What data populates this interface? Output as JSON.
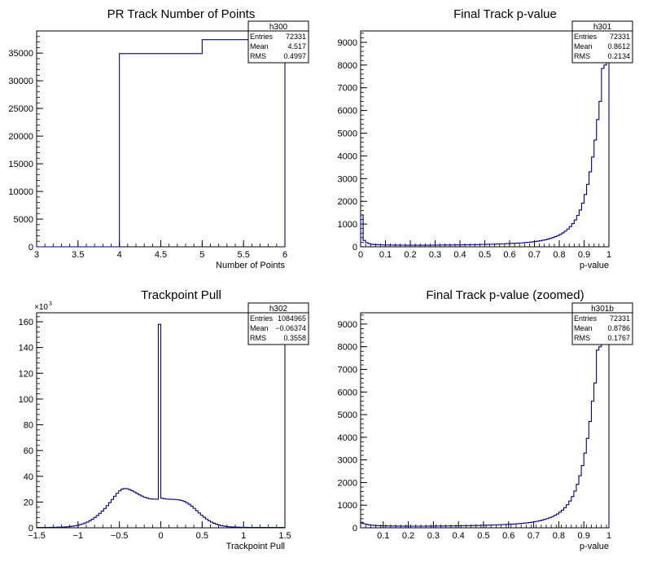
{
  "chart_data": [
    {
      "type": "histogram",
      "title": "PR Track Number of Points",
      "xlabel": "Number of Points",
      "ylabel": "",
      "xlim": [
        3,
        6
      ],
      "ylim": [
        0,
        39000
      ],
      "x_ticks": [
        "3",
        "3.5",
        "4",
        "4.5",
        "5",
        "5.5",
        "6"
      ],
      "y_ticks": [
        "0",
        "5000",
        "10000",
        "15000",
        "20000",
        "25000",
        "30000",
        "35000"
      ],
      "y_multiplier": "",
      "line_color": "#00008b",
      "bin_edges": [
        3,
        4,
        5,
        6
      ],
      "counts": [
        0,
        34900,
        37431
      ],
      "stats": {
        "name": "h300",
        "rows": [
          {
            "label": "Entries",
            "value": "72331"
          },
          {
            "label": "Mean",
            "value": "4.517"
          },
          {
            "label": "RMS",
            "value": "0.4997"
          }
        ]
      }
    },
    {
      "type": "histogram",
      "title": "Final Track p-value",
      "xlabel": "p-value",
      "ylabel": "",
      "xlim": [
        0,
        1
      ],
      "ylim": [
        0,
        9500
      ],
      "x_ticks": [
        "0",
        "0.1",
        "0.2",
        "0.3",
        "0.4",
        "0.5",
        "0.6",
        "0.7",
        "0.8",
        "0.9",
        "1"
      ],
      "y_ticks": [
        "0",
        "1000",
        "2000",
        "3000",
        "4000",
        "5000",
        "6000",
        "7000",
        "8000",
        "9000"
      ],
      "y_multiplier": "",
      "line_color": "#00008b",
      "bin_width": 0.01,
      "counts": [
        1400,
        280,
        180,
        140,
        110,
        100,
        95,
        90,
        85,
        80,
        80,
        78,
        76,
        75,
        74,
        73,
        72,
        72,
        71,
        70,
        70,
        70,
        70,
        70,
        70,
        70,
        70,
        71,
        72,
        73,
        74,
        75,
        76,
        77,
        78,
        79,
        80,
        81,
        82,
        83,
        84,
        86,
        88,
        90,
        92,
        94,
        96,
        98,
        100,
        103,
        106,
        109,
        112,
        115,
        118,
        122,
        126,
        130,
        135,
        140,
        145,
        150,
        156,
        163,
        170,
        178,
        187,
        197,
        208,
        220,
        234,
        250,
        268,
        288,
        312,
        340,
        370,
        405,
        445,
        490,
        545,
        610,
        690,
        780,
        890,
        1020,
        1180,
        1380,
        1620,
        1920,
        2300,
        2750,
        3300,
        3950,
        4700,
        5600,
        6400,
        7850,
        8000,
        8300
      ],
      "stats": {
        "name": "h301",
        "rows": [
          {
            "label": "Entries",
            "value": "72331"
          },
          {
            "label": "Mean",
            "value": "0.8612"
          },
          {
            "label": "RMS",
            "value": "0.2134"
          }
        ]
      }
    },
    {
      "type": "histogram",
      "title": "Trackpoint Pull",
      "xlabel": "Trackpoint Pull",
      "ylabel": "",
      "xlim": [
        -1.5,
        1.5
      ],
      "ylim": [
        0,
        167
      ],
      "x_ticks": [
        "−1.5",
        "−1",
        "−0.5",
        "0",
        "0.5",
        "1",
        "1.5"
      ],
      "y_ticks": [
        "0",
        "20",
        "40",
        "60",
        "80",
        "100",
        "120",
        "140",
        "160"
      ],
      "y_multiplier": "×10",
      "y_multiplier_exponent": "3",
      "line_color": "#00008b",
      "bin_width": 0.03,
      "counts": [
        0.3,
        0.3,
        0.3,
        0.3,
        0.3,
        0.4,
        0.4,
        0.4,
        0.5,
        0.5,
        0.6,
        0.7,
        0.8,
        1.0,
        1.2,
        1.5,
        1.9,
        2.4,
        3.0,
        3.7,
        4.5,
        5.5,
        6.7,
        8.0,
        9.5,
        11.2,
        13.0,
        15.0,
        17.2,
        19.6,
        22.0,
        24.5,
        26.8,
        28.7,
        30.0,
        30.5,
        30.3,
        29.7,
        28.8,
        27.8,
        26.7,
        25.6,
        24.6,
        23.8,
        23.2,
        22.6,
        22.4,
        22.3,
        22.2,
        158.0,
        23.0,
        22.6,
        22.3,
        22.2,
        22.1,
        22.0,
        21.9,
        21.6,
        21.2,
        20.5,
        19.5,
        18.3,
        16.8,
        15.1,
        13.3,
        11.5,
        9.8,
        8.2,
        6.8,
        5.5,
        4.4,
        3.5,
        2.8,
        2.2,
        1.7,
        1.3,
        1.0,
        0.8,
        0.7,
        0.6,
        0.5,
        0.5,
        0.4,
        0.4,
        0.4,
        0.3,
        0.3,
        0.3,
        0.3,
        0.3,
        0.3,
        0.3,
        0.3,
        0.3,
        0.3,
        0.3,
        0.3,
        0.3,
        0.3,
        0.3
      ],
      "stats": {
        "name": "h302",
        "rows": [
          {
            "label": "Entries",
            "value": "1084965"
          },
          {
            "label": "Mean",
            "value": "−0.06374"
          },
          {
            "label": "RMS",
            "value": "0.3558"
          }
        ]
      }
    },
    {
      "type": "histogram",
      "title": "Final Track p-value (zoomed)",
      "xlabel": "p-value",
      "ylabel": "",
      "xlim": [
        0.01,
        1
      ],
      "ylim": [
        0,
        9500
      ],
      "x_ticks": [
        "0.1",
        "0.2",
        "0.3",
        "0.4",
        "0.5",
        "0.6",
        "0.7",
        "0.8",
        "0.9",
        "1"
      ],
      "y_ticks": [
        "0",
        "1000",
        "2000",
        "3000",
        "4000",
        "5000",
        "6000",
        "7000",
        "8000",
        "9000"
      ],
      "y_multiplier": "",
      "line_color": "#00008b",
      "bin_width": 0.01,
      "counts": [
        240,
        180,
        150,
        130,
        115,
        105,
        98,
        92,
        88,
        85,
        82,
        80,
        78,
        77,
        76,
        75,
        74,
        73,
        73,
        72,
        72,
        72,
        72,
        72,
        72,
        72,
        73,
        74,
        75,
        76,
        77,
        78,
        79,
        80,
        81,
        82,
        83,
        84,
        86,
        88,
        90,
        92,
        94,
        96,
        98,
        100,
        103,
        106,
        109,
        112,
        115,
        118,
        122,
        126,
        130,
        135,
        140,
        145,
        150,
        156,
        163,
        170,
        178,
        187,
        197,
        208,
        220,
        234,
        250,
        268,
        288,
        312,
        340,
        370,
        405,
        445,
        490,
        545,
        610,
        690,
        780,
        890,
        1020,
        1180,
        1380,
        1620,
        1920,
        2300,
        2750,
        3300,
        3950,
        4700,
        5600,
        6400,
        7850,
        8000,
        8300,
        8400,
        8500
      ],
      "stats": {
        "name": "h301b",
        "rows": [
          {
            "label": "Entries",
            "value": "72331"
          },
          {
            "label": "Mean",
            "value": "0.8786"
          },
          {
            "label": "RMS",
            "value": "0.1767"
          }
        ]
      }
    }
  ]
}
